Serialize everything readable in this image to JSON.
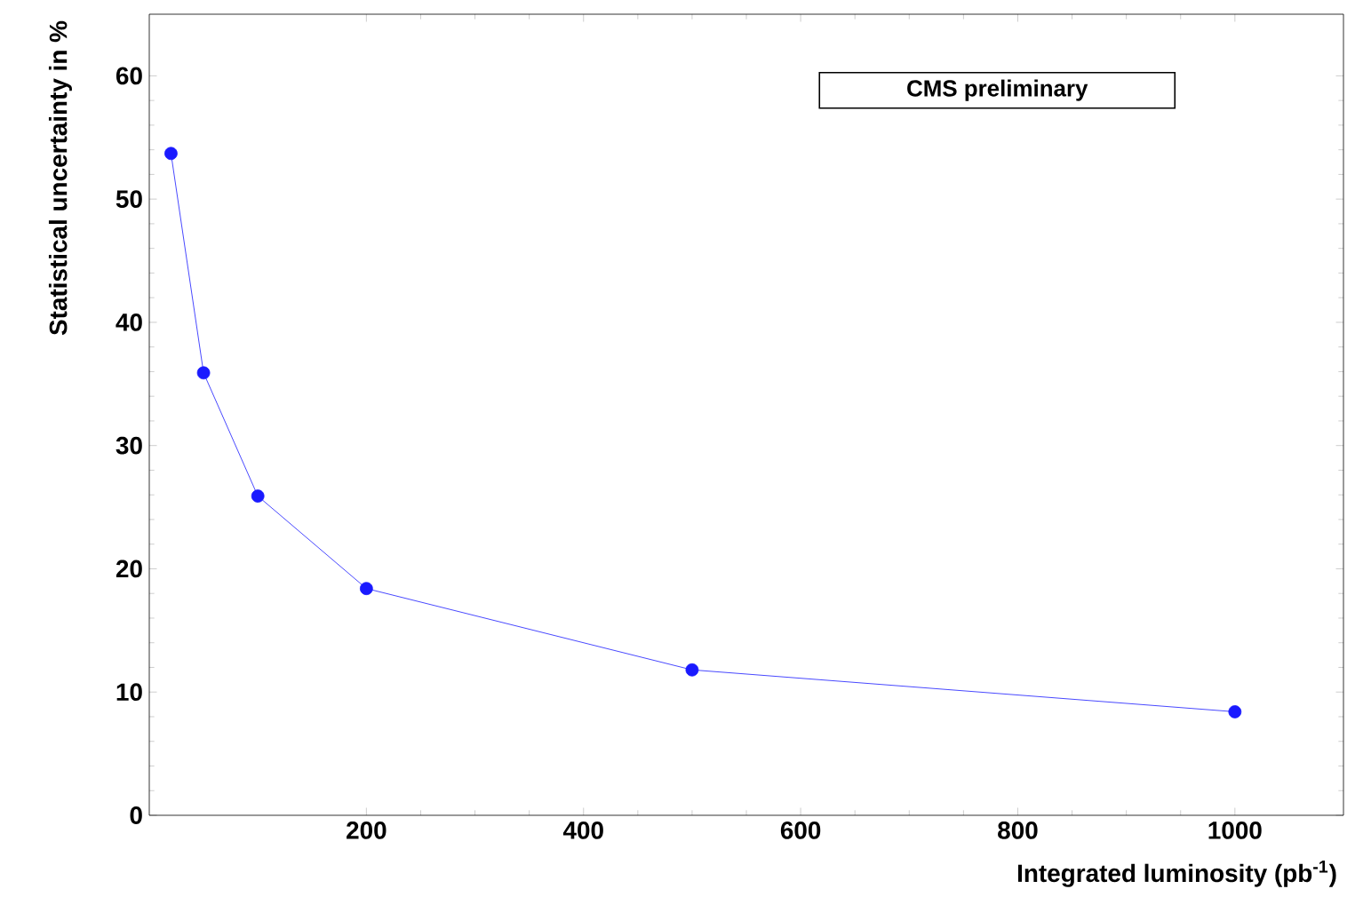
{
  "chart_data": {
    "type": "line",
    "xlabel": "Integrated luminosity (pb$^{-1}$)",
    "ylabel": "Statistical uncertainty in %",
    "annotations": [
      "CMS preliminary"
    ],
    "x": [
      20,
      50,
      100,
      200,
      500,
      1000
    ],
    "series": [
      {
        "color": "#1a1aff",
        "values": [
          53.7,
          35.9,
          25.9,
          18.4,
          11.8,
          8.4
        ]
      }
    ],
    "xlim": [
      0,
      1100
    ],
    "ylim": [
      0,
      65
    ],
    "xticks": [
      200,
      400,
      600,
      800,
      1000
    ],
    "yticks": [
      0,
      10,
      20,
      30,
      40,
      50,
      60
    ],
    "grid": false,
    "marker": "circle",
    "line_style": "solid"
  }
}
